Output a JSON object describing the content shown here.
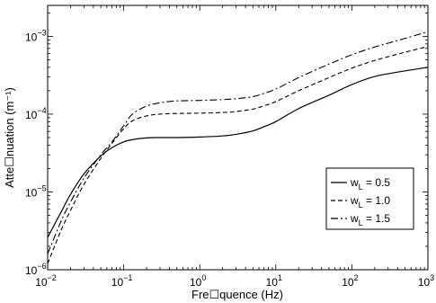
{
  "chart_data": {
    "type": "line",
    "title": "",
    "xlabel": "Fre☐quence (Hz)",
    "ylabel": "Atte☐nuation (m⁻¹)",
    "xscale": "log",
    "yscale": "log",
    "xlim": [
      0.01,
      1000
    ],
    "ylim": [
      1e-06,
      0.0025
    ],
    "grid": false,
    "legend_position": "right",
    "x_ticks": [
      {
        "value": 0.01,
        "base": "10",
        "exp": "−2"
      },
      {
        "value": 0.1,
        "base": "10",
        "exp": "−1"
      },
      {
        "value": 1,
        "base": "10",
        "exp": "0"
      },
      {
        "value": 10,
        "base": "10",
        "exp": "1"
      },
      {
        "value": 100,
        "base": "10",
        "exp": "2"
      },
      {
        "value": 1000,
        "base": "10",
        "exp": "3"
      }
    ],
    "y_ticks": [
      {
        "value": 1e-06,
        "base": "10",
        "exp": "−6"
      },
      {
        "value": 1e-05,
        "base": "10",
        "exp": "−5"
      },
      {
        "value": 0.0001,
        "base": "10",
        "exp": "−4"
      },
      {
        "value": 0.001,
        "base": "10",
        "exp": "−3"
      }
    ],
    "series": [
      {
        "name": "w_L = 0.5",
        "legend_main": "w",
        "legend_sub": "L",
        "legend_rest": " = 0.5",
        "dash": "solid",
        "x": [
          0.01,
          0.015,
          0.02,
          0.03,
          0.05,
          0.07,
          0.1,
          0.13,
          0.2,
          0.3,
          0.5,
          1,
          2,
          3,
          5,
          7,
          10,
          20,
          50,
          100,
          200,
          500,
          1000
        ],
        "y": [
          2.6e-06,
          5.5e-06,
          9.3e-06,
          1.7e-05,
          2.9e-05,
          3.7e-05,
          4.4e-05,
          4.7e-05,
          4.95e-05,
          5e-05,
          5e-05,
          5.08e-05,
          5.25e-05,
          5.5e-05,
          6.1e-05,
          6.9e-05,
          8e-05,
          0.000118,
          0.000175,
          0.00024,
          0.000305,
          0.00036,
          0.0004
        ]
      },
      {
        "name": "w_L = 1.0",
        "legend_main": "w",
        "legend_sub": "L",
        "legend_rest": " = 1.0",
        "dash": "dashed",
        "x": [
          0.01,
          0.015,
          0.02,
          0.03,
          0.05,
          0.07,
          0.1,
          0.13,
          0.2,
          0.3,
          0.5,
          1,
          2,
          3,
          5,
          7,
          10,
          20,
          50,
          100,
          200,
          500,
          1000
        ],
        "y": [
          1.2e-06,
          3.2e-06,
          5.8e-06,
          1.25e-05,
          2.7e-05,
          4.2e-05,
          6.5e-05,
          8.2e-05,
          9.5e-05,
          0.0001,
          0.000102,
          0.000103,
          0.000105,
          0.000108,
          0.000116,
          0.000128,
          0.000145,
          0.0002,
          0.000295,
          0.00039,
          0.00049,
          0.000625,
          0.00074
        ]
      },
      {
        "name": "w_L = 1.5",
        "legend_main": "w",
        "legend_sub": "L",
        "legend_rest": " = 1.5",
        "dash": "dashdot",
        "x": [
          0.01,
          0.015,
          0.02,
          0.03,
          0.05,
          0.07,
          0.1,
          0.13,
          0.2,
          0.3,
          0.5,
          1,
          2,
          3,
          5,
          7,
          10,
          20,
          50,
          100,
          200,
          500,
          1000
        ],
        "y": [
          1.6e-06,
          4.2e-06,
          7.4e-06,
          1.5e-05,
          3e-05,
          4.4e-05,
          7.1e-05,
          0.0001,
          0.000127,
          0.00014,
          0.000148,
          0.00015,
          0.000154,
          0.000158,
          0.000168,
          0.000185,
          0.00021,
          0.000295,
          0.00044,
          0.00058,
          0.00073,
          0.00094,
          0.00115
        ]
      }
    ]
  }
}
